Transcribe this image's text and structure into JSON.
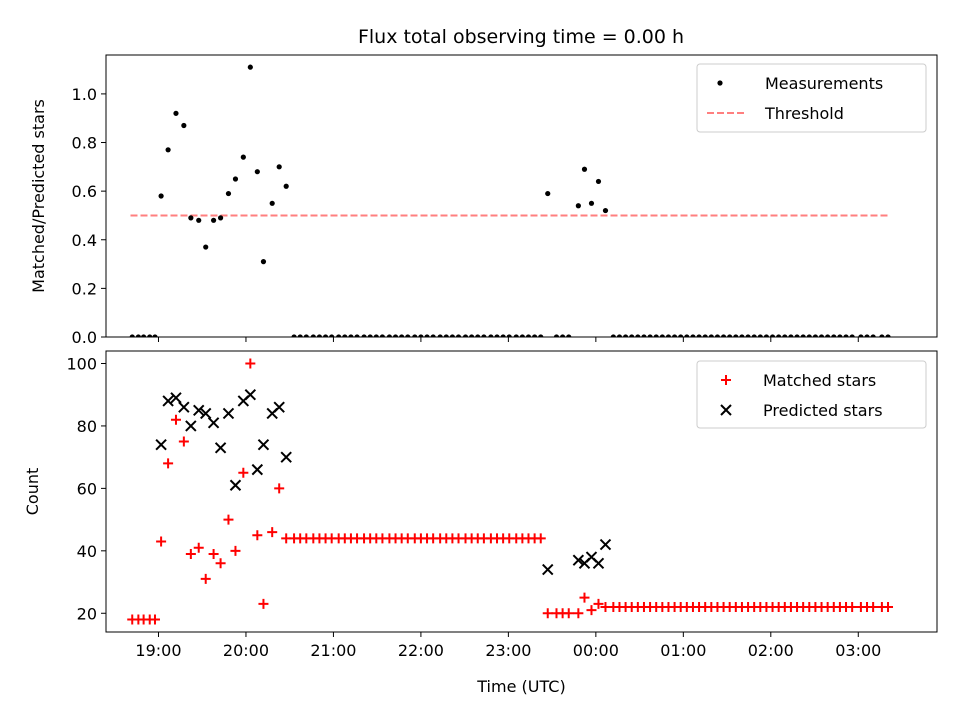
{
  "chart_data": [
    {
      "type": "scatter",
      "title": "Flux total observing time = 0.00 h",
      "xlabel": "",
      "ylabel": "Matched/Predicted stars",
      "ylim": [
        0,
        1.16
      ],
      "yticks": [
        "0.0",
        "0.2",
        "0.4",
        "0.6",
        "0.8",
        "1.0"
      ],
      "ytick_values": [
        0,
        0.2,
        0.4,
        0.6,
        0.8,
        1.0
      ],
      "xlim_hours": [
        18.4,
        27.9
      ],
      "xticks_hours": [
        19,
        20,
        21,
        22,
        23,
        24,
        25,
        26,
        27
      ],
      "xtick_labels": [],
      "legend": {
        "position": "top-right",
        "entries": [
          "Measurements",
          "Threshold"
        ]
      },
      "threshold": {
        "name": "Threshold",
        "value": 0.5,
        "x_range_hours": [
          18.68,
          27.35
        ],
        "color": "#ff7f7f"
      },
      "series": [
        {
          "name": "Measurements",
          "color": "#000000",
          "points": [
            [
              18.7,
              0
            ],
            [
              18.77,
              0
            ],
            [
              18.83,
              0
            ],
            [
              18.9,
              0
            ],
            [
              18.96,
              0
            ],
            [
              19.03,
              0.58
            ],
            [
              19.11,
              0.77
            ],
            [
              19.2,
              0.92
            ],
            [
              19.29,
              0.87
            ],
            [
              19.37,
              0.49
            ],
            [
              19.46,
              0.48
            ],
            [
              19.54,
              0.37
            ],
            [
              19.63,
              0.48
            ],
            [
              19.71,
              0.49
            ],
            [
              19.8,
              0.59
            ],
            [
              19.88,
              0.65
            ],
            [
              19.97,
              0.74
            ],
            [
              20.05,
              1.11
            ],
            [
              20.13,
              0.68
            ],
            [
              20.2,
              0.31
            ],
            [
              20.3,
              0.55
            ],
            [
              20.38,
              0.7
            ],
            [
              20.46,
              0.62
            ],
            [
              20.55,
              0
            ],
            [
              20.62,
              0
            ],
            [
              20.69,
              0
            ],
            [
              20.77,
              0
            ],
            [
              20.84,
              0
            ],
            [
              20.91,
              0
            ],
            [
              20.98,
              0
            ],
            [
              21.06,
              0
            ],
            [
              21.13,
              0
            ],
            [
              21.2,
              0
            ],
            [
              21.27,
              0
            ],
            [
              21.35,
              0
            ],
            [
              21.42,
              0
            ],
            [
              21.49,
              0
            ],
            [
              21.56,
              0
            ],
            [
              21.64,
              0
            ],
            [
              21.71,
              0
            ],
            [
              21.78,
              0
            ],
            [
              21.85,
              0
            ],
            [
              21.93,
              0
            ],
            [
              22.0,
              0
            ],
            [
              22.07,
              0
            ],
            [
              22.14,
              0
            ],
            [
              22.22,
              0
            ],
            [
              22.29,
              0
            ],
            [
              22.36,
              0
            ],
            [
              22.43,
              0
            ],
            [
              22.51,
              0
            ],
            [
              22.58,
              0
            ],
            [
              22.65,
              0
            ],
            [
              22.72,
              0
            ],
            [
              22.8,
              0
            ],
            [
              22.87,
              0
            ],
            [
              22.94,
              0
            ],
            [
              23.01,
              0
            ],
            [
              23.09,
              0
            ],
            [
              23.16,
              0
            ],
            [
              23.23,
              0
            ],
            [
              23.3,
              0
            ],
            [
              23.37,
              0
            ],
            [
              23.45,
              0.59
            ],
            [
              23.55,
              0
            ],
            [
              23.62,
              0
            ],
            [
              23.69,
              0
            ],
            [
              23.8,
              0.54
            ],
            [
              23.87,
              0.69
            ],
            [
              23.95,
              0.55
            ],
            [
              24.03,
              0.64
            ],
            [
              24.11,
              0.52
            ],
            [
              24.2,
              0
            ],
            [
              24.27,
              0
            ],
            [
              24.34,
              0
            ],
            [
              24.41,
              0
            ],
            [
              24.48,
              0
            ],
            [
              24.55,
              0
            ],
            [
              24.62,
              0
            ],
            [
              24.69,
              0
            ],
            [
              24.76,
              0
            ],
            [
              24.83,
              0
            ],
            [
              24.9,
              0
            ],
            [
              24.97,
              0
            ],
            [
              25.04,
              0
            ],
            [
              25.11,
              0
            ],
            [
              25.18,
              0
            ],
            [
              25.25,
              0
            ],
            [
              25.32,
              0
            ],
            [
              25.39,
              0
            ],
            [
              25.46,
              0
            ],
            [
              25.53,
              0
            ],
            [
              25.6,
              0
            ],
            [
              25.67,
              0
            ],
            [
              25.74,
              0
            ],
            [
              25.81,
              0
            ],
            [
              25.88,
              0
            ],
            [
              25.95,
              0
            ],
            [
              26.02,
              0
            ],
            [
              26.09,
              0
            ],
            [
              26.16,
              0
            ],
            [
              26.23,
              0
            ],
            [
              26.3,
              0
            ],
            [
              26.37,
              0
            ],
            [
              26.44,
              0
            ],
            [
              26.51,
              0
            ],
            [
              26.58,
              0
            ],
            [
              26.65,
              0
            ],
            [
              26.72,
              0
            ],
            [
              26.79,
              0
            ],
            [
              26.86,
              0
            ],
            [
              26.93,
              0
            ],
            [
              27.03,
              0
            ],
            [
              27.1,
              0
            ],
            [
              27.17,
              0
            ],
            [
              27.27,
              0
            ],
            [
              27.34,
              0
            ]
          ]
        }
      ]
    },
    {
      "type": "scatter",
      "title": "",
      "xlabel": "Time (UTC)",
      "ylabel": "Count",
      "ylim": [
        14,
        104
      ],
      "yticks": [
        "20",
        "40",
        "60",
        "80",
        "100"
      ],
      "ytick_values": [
        20,
        40,
        60,
        80,
        100
      ],
      "xlim_hours": [
        18.4,
        27.9
      ],
      "xticks_hours": [
        19,
        20,
        21,
        22,
        23,
        24,
        25,
        26,
        27
      ],
      "xtick_labels": [
        "19:00",
        "20:00",
        "21:00",
        "22:00",
        "23:00",
        "00:00",
        "01:00",
        "02:00",
        "03:00"
      ],
      "legend": {
        "position": "top-right",
        "entries": [
          "Matched stars",
          "Predicted stars"
        ]
      },
      "series": [
        {
          "name": "Matched stars",
          "marker": "plus",
          "color": "#ff0000",
          "points": [
            [
              18.7,
              18
            ],
            [
              18.77,
              18
            ],
            [
              18.83,
              18
            ],
            [
              18.9,
              18
            ],
            [
              18.96,
              18
            ],
            [
              19.03,
              43
            ],
            [
              19.11,
              68
            ],
            [
              19.2,
              82
            ],
            [
              19.29,
              75
            ],
            [
              19.37,
              39
            ],
            [
              19.46,
              41
            ],
            [
              19.54,
              31
            ],
            [
              19.63,
              39
            ],
            [
              19.71,
              36
            ],
            [
              19.8,
              50
            ],
            [
              19.88,
              40
            ],
            [
              19.97,
              65
            ],
            [
              20.05,
              100
            ],
            [
              20.13,
              45
            ],
            [
              20.2,
              23
            ],
            [
              20.3,
              46
            ],
            [
              20.38,
              60
            ],
            [
              20.46,
              44
            ],
            [
              20.55,
              44
            ],
            [
              20.62,
              44
            ],
            [
              20.69,
              44
            ],
            [
              20.77,
              44
            ],
            [
              20.84,
              44
            ],
            [
              20.91,
              44
            ],
            [
              20.98,
              44
            ],
            [
              21.06,
              44
            ],
            [
              21.13,
              44
            ],
            [
              21.2,
              44
            ],
            [
              21.27,
              44
            ],
            [
              21.35,
              44
            ],
            [
              21.42,
              44
            ],
            [
              21.49,
              44
            ],
            [
              21.56,
              44
            ],
            [
              21.64,
              44
            ],
            [
              21.71,
              44
            ],
            [
              21.78,
              44
            ],
            [
              21.85,
              44
            ],
            [
              21.93,
              44
            ],
            [
              22.0,
              44
            ],
            [
              22.07,
              44
            ],
            [
              22.14,
              44
            ],
            [
              22.22,
              44
            ],
            [
              22.29,
              44
            ],
            [
              22.36,
              44
            ],
            [
              22.43,
              44
            ],
            [
              22.51,
              44
            ],
            [
              22.58,
              44
            ],
            [
              22.65,
              44
            ],
            [
              22.72,
              44
            ],
            [
              22.8,
              44
            ],
            [
              22.87,
              44
            ],
            [
              22.94,
              44
            ],
            [
              23.01,
              44
            ],
            [
              23.09,
              44
            ],
            [
              23.16,
              44
            ],
            [
              23.23,
              44
            ],
            [
              23.3,
              44
            ],
            [
              23.37,
              44
            ],
            [
              23.45,
              20
            ],
            [
              23.55,
              20
            ],
            [
              23.62,
              20
            ],
            [
              23.69,
              20
            ],
            [
              23.8,
              20
            ],
            [
              23.87,
              25
            ],
            [
              23.95,
              21
            ],
            [
              24.03,
              23
            ],
            [
              24.11,
              22
            ],
            [
              24.2,
              22
            ],
            [
              24.27,
              22
            ],
            [
              24.34,
              22
            ],
            [
              24.41,
              22
            ],
            [
              24.48,
              22
            ],
            [
              24.55,
              22
            ],
            [
              24.62,
              22
            ],
            [
              24.69,
              22
            ],
            [
              24.76,
              22
            ],
            [
              24.83,
              22
            ],
            [
              24.9,
              22
            ],
            [
              24.97,
              22
            ],
            [
              25.04,
              22
            ],
            [
              25.11,
              22
            ],
            [
              25.18,
              22
            ],
            [
              25.25,
              22
            ],
            [
              25.32,
              22
            ],
            [
              25.39,
              22
            ],
            [
              25.46,
              22
            ],
            [
              25.53,
              22
            ],
            [
              25.6,
              22
            ],
            [
              25.67,
              22
            ],
            [
              25.74,
              22
            ],
            [
              25.81,
              22
            ],
            [
              25.88,
              22
            ],
            [
              25.95,
              22
            ],
            [
              26.02,
              22
            ],
            [
              26.09,
              22
            ],
            [
              26.16,
              22
            ],
            [
              26.23,
              22
            ],
            [
              26.3,
              22
            ],
            [
              26.37,
              22
            ],
            [
              26.44,
              22
            ],
            [
              26.51,
              22
            ],
            [
              26.58,
              22
            ],
            [
              26.65,
              22
            ],
            [
              26.72,
              22
            ],
            [
              26.79,
              22
            ],
            [
              26.86,
              22
            ],
            [
              26.93,
              22
            ],
            [
              27.03,
              22
            ],
            [
              27.1,
              22
            ],
            [
              27.17,
              22
            ],
            [
              27.27,
              22
            ],
            [
              27.34,
              22
            ]
          ]
        },
        {
          "name": "Predicted stars",
          "marker": "x",
          "color": "#000000",
          "points": [
            [
              19.03,
              74
            ],
            [
              19.11,
              88
            ],
            [
              19.2,
              89
            ],
            [
              19.29,
              86
            ],
            [
              19.37,
              80
            ],
            [
              19.46,
              85
            ],
            [
              19.54,
              84
            ],
            [
              19.63,
              81
            ],
            [
              19.71,
              73
            ],
            [
              19.8,
              84
            ],
            [
              19.88,
              61
            ],
            [
              19.97,
              88
            ],
            [
              20.05,
              90
            ],
            [
              20.13,
              66
            ],
            [
              20.2,
              74
            ],
            [
              20.3,
              84
            ],
            [
              20.38,
              86
            ],
            [
              20.46,
              70
            ],
            [
              23.45,
              34
            ],
            [
              23.8,
              37
            ],
            [
              23.87,
              36
            ],
            [
              23.95,
              38
            ],
            [
              24.03,
              36
            ],
            [
              24.11,
              42
            ]
          ]
        }
      ]
    }
  ]
}
